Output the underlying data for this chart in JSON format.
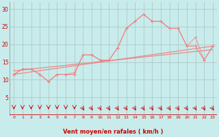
{
  "xlabel": "Vent moyen/en rafales ( km/h )",
  "background_color": "#c8ecec",
  "grid_color": "#b0c8c8",
  "line_color": "#f08080",
  "text_color": "#cc0000",
  "xlim": [
    -0.5,
    23.5
  ],
  "ylim": [
    0,
    32
  ],
  "yticks": [
    5,
    10,
    15,
    20,
    25,
    30
  ],
  "xticks": [
    0,
    1,
    2,
    3,
    4,
    5,
    6,
    7,
    8,
    9,
    10,
    11,
    12,
    13,
    14,
    15,
    16,
    17,
    18,
    19,
    20,
    21,
    22,
    23
  ],
  "series_avg": [
    11.5,
    13.0,
    13.0,
    11.5,
    9.5,
    11.5,
    11.5,
    11.5,
    17.0,
    17.0,
    15.5,
    15.5,
    19.0,
    24.5,
    26.5,
    28.5,
    26.5,
    26.5,
    24.5,
    24.5,
    19.5,
    19.5,
    15.5,
    19.5
  ],
  "series_gust": [
    11.5,
    13.0,
    13.0,
    11.5,
    9.5,
    11.5,
    11.5,
    12.0,
    17.0,
    17.0,
    15.5,
    15.5,
    19.0,
    24.5,
    26.5,
    28.5,
    26.5,
    26.5,
    24.5,
    24.5,
    19.5,
    22.0,
    15.5,
    19.5
  ],
  "trend1_x": [
    0,
    23
  ],
  "trend1_y": [
    12.5,
    18.5
  ],
  "trend2_x": [
    0,
    23
  ],
  "trend2_y": [
    11.5,
    19.5
  ],
  "arrow_straight_x": [
    0,
    1,
    2,
    3,
    4,
    5,
    6,
    7
  ],
  "arrow_diag_x": [
    8,
    9,
    10,
    11,
    12,
    13,
    14,
    15,
    16,
    17,
    18,
    19,
    20,
    21,
    22,
    23
  ]
}
